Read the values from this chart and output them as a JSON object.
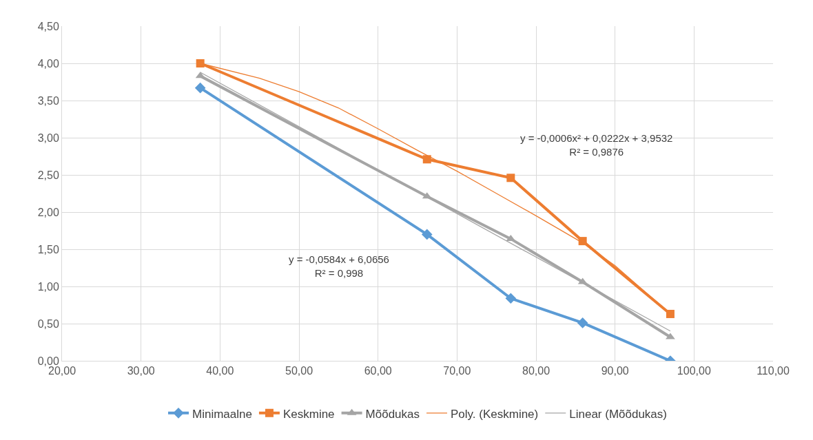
{
  "chart_data": {
    "type": "line",
    "series": [
      {
        "name": "Minimaalne",
        "color": "#5b9bd5",
        "marker": "diamond",
        "x": [
          37.5,
          66.2,
          76.8,
          85.9,
          97.0
        ],
        "values": [
          3.67,
          1.7,
          0.84,
          0.51,
          0.0
        ]
      },
      {
        "name": "Keskmine",
        "color": "#ed7d31",
        "marker": "square",
        "x": [
          37.5,
          66.2,
          76.8,
          85.9,
          97.0
        ],
        "values": [
          4.0,
          2.71,
          2.46,
          1.61,
          0.63
        ]
      },
      {
        "name": "Mõõdukas",
        "color": "#a5a5a5",
        "marker": "triangle",
        "x": [
          37.5,
          66.2,
          76.8,
          85.9,
          97.0
        ],
        "values": [
          3.83,
          2.21,
          1.64,
          1.06,
          0.32
        ]
      },
      {
        "name": "Poly. (Keskmine)",
        "color": "#ed7d31",
        "marker": "none",
        "x": [
          37.5,
          45,
          50,
          55,
          60,
          65,
          70,
          75,
          80,
          86,
          90,
          97
        ],
        "values": [
          4.0,
          3.8,
          3.62,
          3.4,
          3.12,
          2.83,
          2.55,
          2.25,
          1.95,
          1.58,
          1.28,
          0.63
        ]
      },
      {
        "name": "Linear (Mõõdukas)",
        "color": "#a5a5a5",
        "marker": "none",
        "x": [
          37.5,
          97.0
        ],
        "values": [
          3.88,
          0.4
        ]
      }
    ],
    "xlim": [
      20,
      110
    ],
    "xticks": [
      {
        "value": 20,
        "label": "20,00"
      },
      {
        "value": 30,
        "label": "30,00"
      },
      {
        "value": 40,
        "label": "40,00"
      },
      {
        "value": 50,
        "label": "50,00"
      },
      {
        "value": 60,
        "label": "60,00"
      },
      {
        "value": 70,
        "label": "70,00"
      },
      {
        "value": 80,
        "label": "80,00"
      },
      {
        "value": 90,
        "label": "90,00"
      },
      {
        "value": 100,
        "label": "100,00"
      },
      {
        "value": 110,
        "label": "110,00"
      }
    ],
    "ylim": [
      0,
      4.5
    ],
    "yticks": [
      {
        "value": 0,
        "label": "0,00"
      },
      {
        "value": 0.5,
        "label": "0,50"
      },
      {
        "value": 1,
        "label": "1,00"
      },
      {
        "value": 1.5,
        "label": "1,50"
      },
      {
        "value": 2,
        "label": "2,00"
      },
      {
        "value": 2.5,
        "label": "2,50"
      },
      {
        "value": 3,
        "label": "3,00"
      },
      {
        "value": 3.5,
        "label": "3,50"
      },
      {
        "value": 4,
        "label": "4,00"
      },
      {
        "value": 4.5,
        "label": "4,50"
      }
    ],
    "annotations": [
      "y = -0,0006x² + 0,0222x + 3,9532\nR² = 0,9876",
      "y = -0,0584x + 6,0656\nR² = 0,998"
    ],
    "grid": true,
    "legend": "bottom",
    "line_style": "solid"
  }
}
